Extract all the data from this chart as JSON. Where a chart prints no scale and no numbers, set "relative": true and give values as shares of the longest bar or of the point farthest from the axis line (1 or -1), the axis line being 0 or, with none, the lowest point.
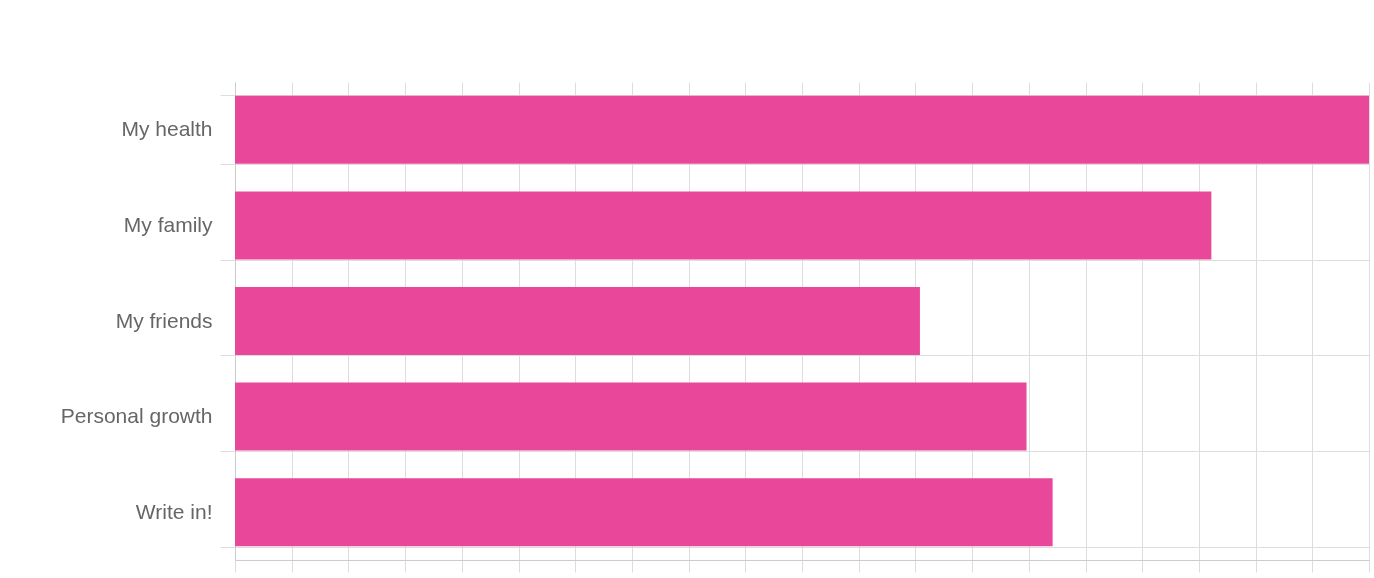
{
  "chart_data": {
    "type": "bar",
    "orientation": "horizontal",
    "relative": true,
    "categories": [
      "My health",
      "My family",
      "My friends",
      "Personal growth",
      "Write in!"
    ],
    "values": [
      1,
      0.861,
      0.604,
      0.698,
      0.721
    ],
    "color": "#e9489a",
    "grid": true
  }
}
